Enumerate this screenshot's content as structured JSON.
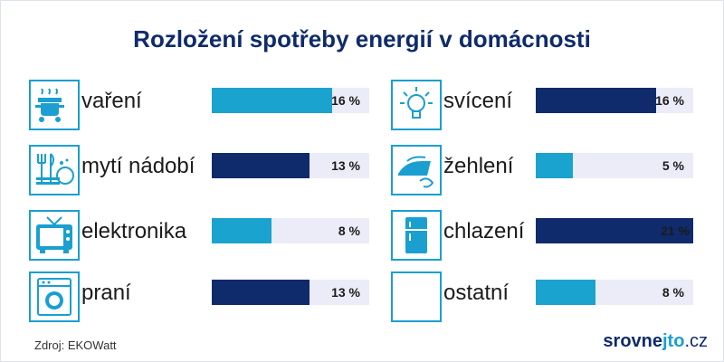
{
  "title": "Rozložení spotřeby energií v domácnosti",
  "source": "Zdroj: EKOWatt",
  "brand": {
    "main": "srovne",
    "accent": "jto",
    "suffix": ".cz"
  },
  "colors": {
    "cyan": "#1aa3cf",
    "navy": "#0f2b6c",
    "track": "#ebecf7"
  },
  "chart_data": {
    "type": "bar",
    "orientation": "horizontal",
    "unit": "%",
    "xlim": [
      0,
      21
    ],
    "items": [
      {
        "category": "vaření",
        "value": 16,
        "label": "16 %",
        "icon": "cooking-pot-icon",
        "color": "cyan",
        "column": "left"
      },
      {
        "category": "mytí nádobí",
        "value": 13,
        "label": "13 %",
        "icon": "dishes-icon",
        "color": "navy",
        "column": "left"
      },
      {
        "category": "elektronika",
        "value": 8,
        "label": "8 %",
        "icon": "tv-icon",
        "color": "cyan",
        "column": "left"
      },
      {
        "category": "praní",
        "value": 13,
        "label": "13 %",
        "icon": "washing-machine-icon",
        "color": "navy",
        "column": "left"
      },
      {
        "category": "svícení",
        "value": 16,
        "label": "16 %",
        "icon": "light-bulb-icon",
        "color": "navy",
        "column": "right"
      },
      {
        "category": "žehlení",
        "value": 5,
        "label": "5 %",
        "icon": "iron-icon",
        "color": "cyan",
        "column": "right"
      },
      {
        "category": "chlazení",
        "value": 21,
        "label": "21 %",
        "icon": "fridge-icon",
        "color": "navy",
        "column": "right"
      },
      {
        "category": "ostatní",
        "value": 8,
        "label": "8 %",
        "icon": "blank-icon",
        "color": "cyan",
        "column": "right"
      }
    ]
  }
}
